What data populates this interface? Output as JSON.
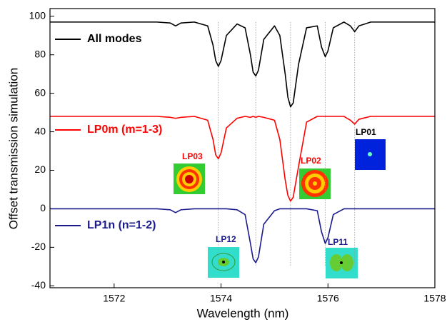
{
  "chart_data": {
    "type": "line",
    "x_label": "Wavelength (nm)",
    "y_label": "Offset transmission simulation",
    "xlim": [
      1570.8,
      1578
    ],
    "xticks": [
      1572,
      1574,
      1576,
      1578
    ],
    "ylim": [
      -41,
      104
    ],
    "yticks": [
      -40,
      -20,
      0,
      20,
      40,
      60,
      80,
      100
    ],
    "x": [
      1570.8,
      1571.5,
      1572.2,
      1572.8,
      1573.05,
      1573.15,
      1573.25,
      1573.5,
      1573.75,
      1573.85,
      1573.9,
      1573.95,
      1574.0,
      1574.1,
      1574.3,
      1574.45,
      1574.55,
      1574.6,
      1574.65,
      1574.7,
      1574.8,
      1575.0,
      1575.1,
      1575.2,
      1575.25,
      1575.3,
      1575.35,
      1575.45,
      1575.6,
      1575.8,
      1575.88,
      1575.95,
      1576.0,
      1576.1,
      1576.3,
      1576.42,
      1576.5,
      1576.58,
      1576.8,
      1577.4,
      1578
    ],
    "series": [
      {
        "name": "All modes",
        "color": "#000000",
        "values": [
          97,
          97,
          97,
          97,
          96.5,
          95,
          96.5,
          97,
          95,
          85,
          77,
          74,
          77,
          90,
          96,
          94,
          80,
          71,
          69,
          72,
          88,
          95,
          90,
          70,
          58,
          53,
          55,
          75,
          94,
          95,
          84,
          79,
          82,
          94,
          97,
          95,
          92,
          95,
          97,
          97,
          97
        ]
      },
      {
        "name": "LP0m (m=1-3)",
        "color": "#ff0000",
        "values": [
          48,
          48,
          48,
          48,
          47.5,
          47,
          47.5,
          48,
          46,
          36,
          28,
          26,
          29,
          42,
          47,
          48,
          47.5,
          48,
          47.5,
          48,
          47.5,
          46,
          36,
          15,
          7,
          4,
          6,
          22,
          45,
          48,
          48,
          48,
          48,
          48,
          48,
          46,
          44,
          46.5,
          48,
          48,
          48
        ]
      },
      {
        "name": "LP1n (n=1-2)",
        "color": "#1a1a8c",
        "values": [
          0,
          0,
          0,
          0,
          -0.5,
          -2,
          -0.5,
          0,
          0,
          0,
          0,
          0,
          0,
          0,
          -0.5,
          -3,
          -18,
          -26,
          -28,
          -25,
          -8,
          -1,
          0,
          0,
          0,
          0,
          0,
          0,
          0,
          -1,
          -12,
          -18,
          -15,
          -3,
          0,
          0,
          0,
          0,
          0,
          0,
          0
        ]
      }
    ],
    "reference_lines": [
      1573.95,
      1574.65,
      1575.3,
      1575.95,
      1576.5
    ],
    "annotations": [
      "LP03",
      "LP02",
      "LP01",
      "LP12",
      "LP11"
    ]
  }
}
